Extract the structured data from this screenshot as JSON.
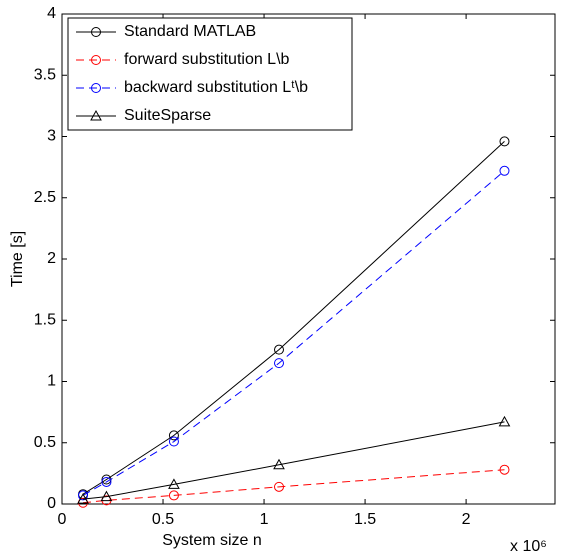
{
  "chart_data": {
    "type": "line",
    "xlabel": "System size n",
    "ylabel": "Time [s]",
    "x_exponent_label": "x 10⁶",
    "x": [
      0.104,
      0.22,
      0.554,
      1.074,
      2.19
    ],
    "series": [
      {
        "name": "Standard MATLAB",
        "color": "#000000",
        "dash": false,
        "marker": "circle",
        "values": [
          0.08,
          0.2,
          0.56,
          1.26,
          2.96
        ]
      },
      {
        "name": "forward substitution L\\b",
        "color": "#ff0000",
        "dash": true,
        "marker": "circle",
        "values": [
          0.01,
          0.03,
          0.07,
          0.14,
          0.28
        ]
      },
      {
        "name": "backward substitution Lᵗ\\b",
        "color": "#0000ff",
        "dash": true,
        "marker": "circle",
        "values": [
          0.07,
          0.18,
          0.51,
          1.15,
          2.72
        ]
      },
      {
        "name": "SuiteSparse",
        "color": "#000000",
        "dash": false,
        "marker": "triangle",
        "values": [
          0.04,
          0.06,
          0.16,
          0.32,
          0.67
        ]
      }
    ],
    "xlim": [
      0,
      2.44
    ],
    "xticks": [
      0,
      0.5,
      1,
      1.5,
      2
    ],
    "ylim": [
      0,
      4
    ],
    "yticks": [
      0,
      0.5,
      1,
      1.5,
      2,
      2.5,
      3,
      3.5,
      4
    ],
    "legend": "upper-left",
    "grid": false
  }
}
